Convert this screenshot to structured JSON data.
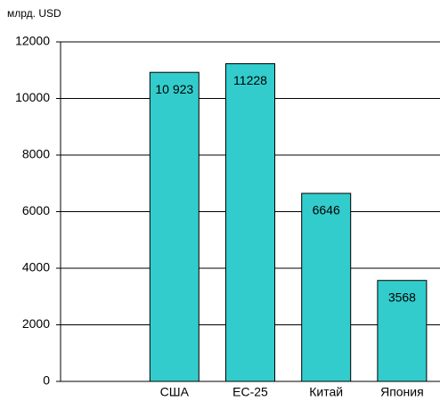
{
  "chart_data": {
    "type": "bar",
    "y_axis_label": "млрд. USD",
    "categories": [
      null,
      "США",
      "ЕС-25",
      "Китай",
      "Япония"
    ],
    "values": [
      null,
      10923,
      11228,
      6646,
      3568
    ],
    "value_labels": [
      null,
      "10 923",
      "11228",
      "6646",
      "3568"
    ],
    "color": "#33cccc",
    "ylim": [
      0,
      12000
    ],
    "yticks": [
      0,
      2000,
      4000,
      6000,
      8000,
      10000,
      12000
    ],
    "grid": true
  }
}
